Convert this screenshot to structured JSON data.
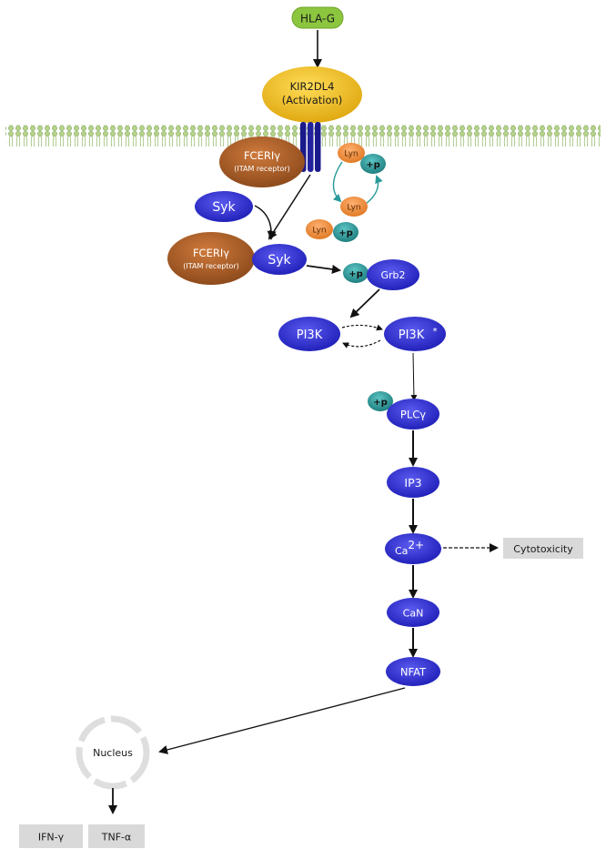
{
  "ligand": {
    "label": "HLA-G"
  },
  "receptor": {
    "name": "KIR2DL4",
    "state": "(Activation)"
  },
  "fceri_top": {
    "name": "FCERIγ",
    "sub": "(ITAM receptor)"
  },
  "fceri_bottom": {
    "name": "FCERIγ",
    "sub": "(ITAM receptor)"
  },
  "lyn": {
    "label_1": "Lyn",
    "label_2": "Lyn",
    "label_3": "Lyn"
  },
  "phospho": {
    "label": "+p"
  },
  "syk": {
    "label_free": "Syk",
    "label_bound": "Syk"
  },
  "grb2": {
    "label": "Grb2"
  },
  "pi3k": {
    "inactive": "PI3K",
    "active": "PI3K",
    "active_mark": "*"
  },
  "plcg": {
    "label": "PLCγ"
  },
  "ip3": {
    "label": "IP3"
  },
  "calcium": {
    "base": "Ca",
    "charge": "2+"
  },
  "can": {
    "label": "CaN"
  },
  "nfat": {
    "label": "NFAT"
  },
  "cytotoxicity": {
    "label": "Cytotoxicity"
  },
  "nucleus": {
    "label": "Nucleus"
  },
  "outputs": {
    "ifn": "IFN-γ",
    "tnf": "TNF-α"
  },
  "colors": {
    "ligand": "#8cc63f",
    "receptor": "#f2c230",
    "fceri": "#b0622a",
    "node_blue": "#2f2fd6",
    "lyn": "#f28c3a",
    "phospho": "#2a9a9a",
    "box_gray": "#d9d9d9",
    "membrane": "#a7c77a"
  }
}
